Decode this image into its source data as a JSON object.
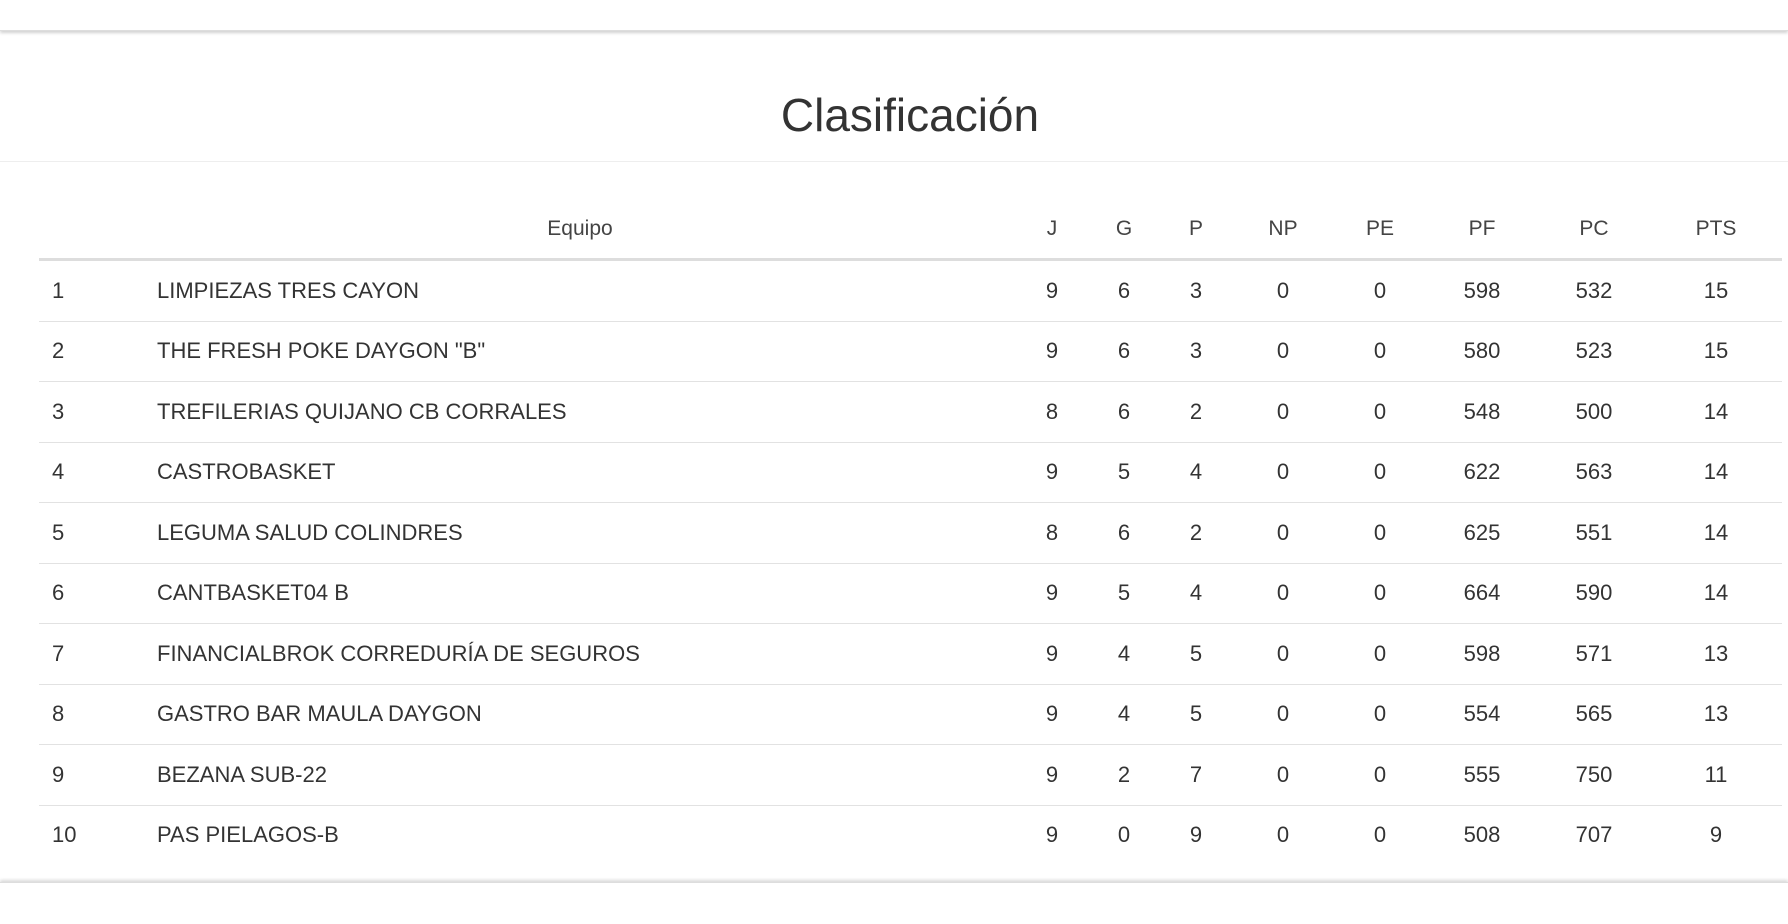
{
  "title": "Clasificación",
  "columns": [
    "",
    "Equipo",
    "J",
    "G",
    "P",
    "NP",
    "PE",
    "PF",
    "PC",
    "PTS"
  ],
  "rows": [
    [
      "1",
      "LIMPIEZAS TRES CAYON",
      "9",
      "6",
      "3",
      "0",
      "0",
      "598",
      "532",
      "15"
    ],
    [
      "2",
      "THE FRESH POKE DAYGON \"B\"",
      "9",
      "6",
      "3",
      "0",
      "0",
      "580",
      "523",
      "15"
    ],
    [
      "3",
      "TREFILERIAS QUIJANO CB CORRALES",
      "8",
      "6",
      "2",
      "0",
      "0",
      "548",
      "500",
      "14"
    ],
    [
      "4",
      "CASTROBASKET",
      "9",
      "5",
      "4",
      "0",
      "0",
      "622",
      "563",
      "14"
    ],
    [
      "5",
      "LEGUMA SALUD COLINDRES",
      "8",
      "6",
      "2",
      "0",
      "0",
      "625",
      "551",
      "14"
    ],
    [
      "6",
      "CANTBASKET04 B",
      "9",
      "5",
      "4",
      "0",
      "0",
      "664",
      "590",
      "14"
    ],
    [
      "7",
      "FINANCIALBROK CORREDURÍA DE SEGUROS",
      "9",
      "4",
      "5",
      "0",
      "0",
      "598",
      "571",
      "13"
    ],
    [
      "8",
      "GASTRO BAR MAULA DAYGON",
      "9",
      "4",
      "5",
      "0",
      "0",
      "554",
      "565",
      "13"
    ],
    [
      "9",
      "BEZANA SUB-22",
      "9",
      "2",
      "7",
      "0",
      "0",
      "555",
      "750",
      "11"
    ],
    [
      "10",
      "PAS PIELAGOS-B",
      "9",
      "0",
      "9",
      "0",
      "0",
      "508",
      "707",
      "9"
    ]
  ]
}
